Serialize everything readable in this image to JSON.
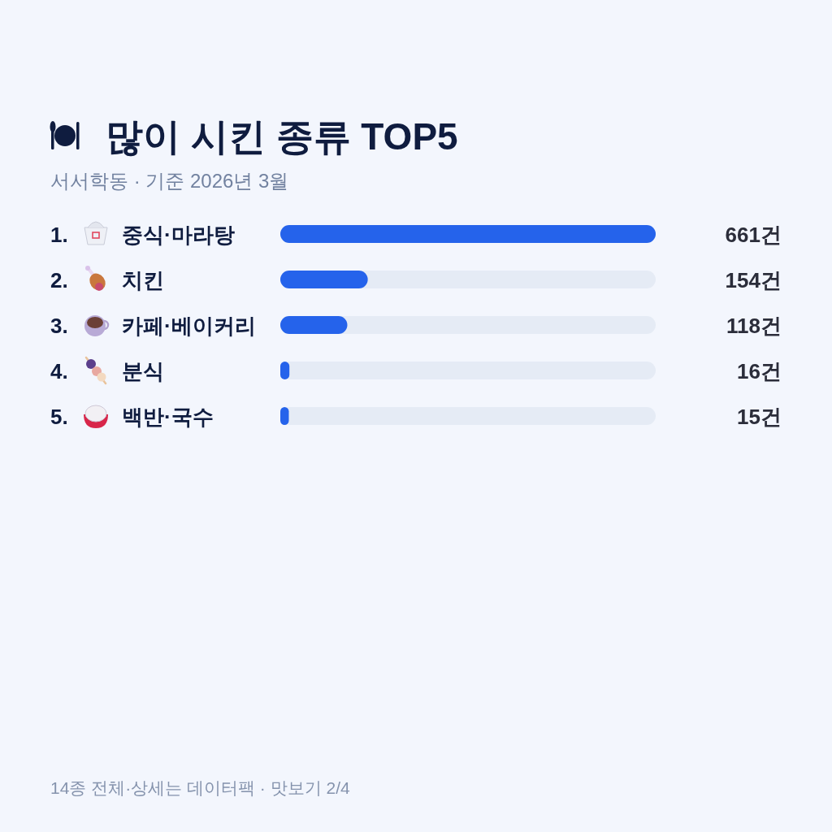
{
  "chart_data": {
    "type": "bar",
    "orientation": "horizontal",
    "title": "많이 시킨 종류 TOP5",
    "subtitle": "서서학동 · 기준 2026년 3월",
    "categories": [
      "1. 중식·마라탕",
      "2. 치킨",
      "3. 카페·베이커리",
      "4. 분식",
      "5. 백반·국수"
    ],
    "values": [
      661,
      154,
      118,
      16,
      15
    ],
    "color": "#2563eb",
    "value_labels": [
      "661건",
      "154건",
      "118건",
      "16건",
      "15건"
    ],
    "annotations": [
      "14종 전체·상세는 데이터팩 · 맛보기 2/4"
    ]
  }
}
